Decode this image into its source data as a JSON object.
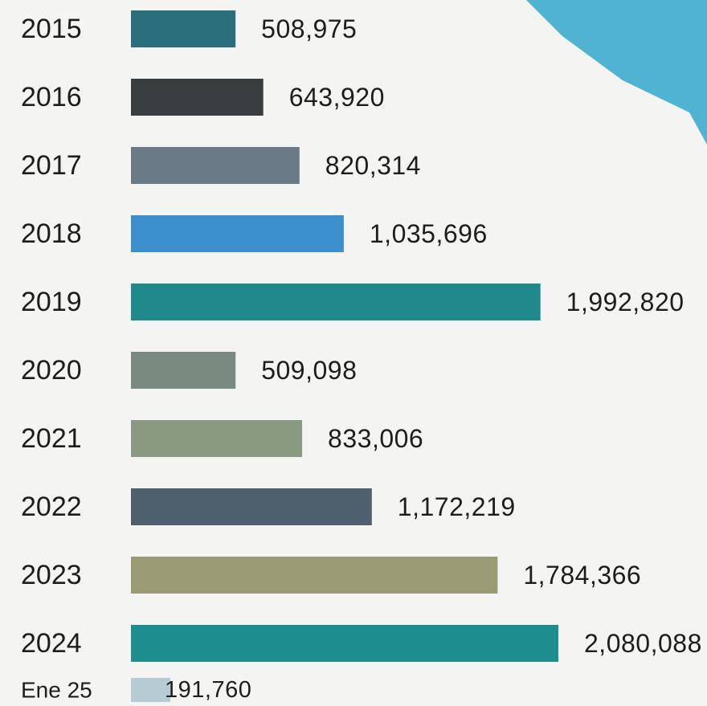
{
  "chart_data": {
    "type": "bar",
    "orientation": "horizontal",
    "categories": [
      "2015",
      "2016",
      "2017",
      "2018",
      "2019",
      "2020",
      "2021",
      "2022",
      "2023",
      "2024",
      "Ene 25"
    ],
    "values": [
      508975,
      643920,
      820314,
      1035696,
      1992820,
      509098,
      833006,
      1172219,
      1784366,
      2080088,
      191760
    ],
    "value_labels": [
      "508,975",
      "643,920",
      "820,314",
      "1,035,696",
      "1,992,820",
      "509,098",
      "833,006",
      "1,172,219",
      "1,784,366",
      "2,080,088",
      "191,760"
    ],
    "bar_colors": [
      "#2b6e7c",
      "#383d40",
      "#6a7a87",
      "#3b8fcc",
      "#20898b",
      "#7a8a80",
      "#8a9a80",
      "#4e5f6d",
      "#9a9b74",
      "#1e8d8f",
      "#b6cbd3"
    ],
    "title": "",
    "xlabel": "",
    "ylabel": "",
    "grid": false,
    "legend": "none"
  },
  "decoration": {
    "corner_shape_color": "#4fb3d1"
  }
}
